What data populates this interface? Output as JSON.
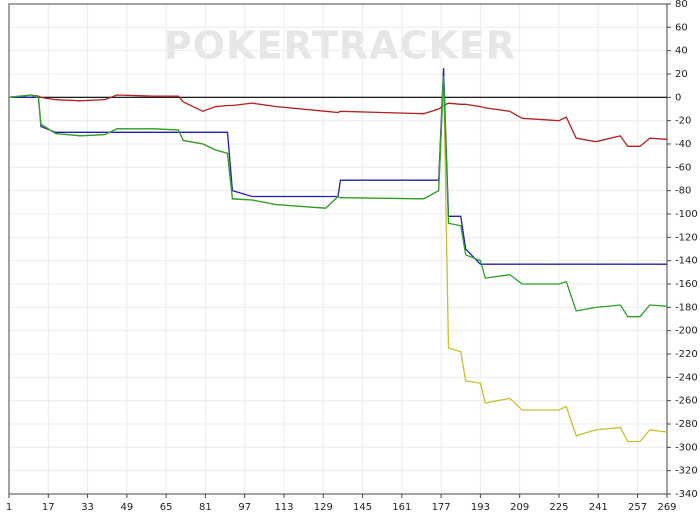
{
  "chart_data": {
    "type": "line",
    "watermark": "POKERTRACKER",
    "x": [
      1,
      10,
      13,
      14,
      20,
      30,
      40,
      45,
      60,
      70,
      72,
      80,
      85,
      90,
      92,
      100,
      110,
      130,
      135,
      136,
      170,
      176,
      178,
      180,
      185,
      187,
      193,
      195,
      205,
      210,
      225,
      228,
      232,
      240,
      250,
      253,
      258,
      262,
      269
    ],
    "series": [
      {
        "color": "#b22222",
        "values": [
          0,
          2,
          1,
          0,
          -2,
          -3,
          -2,
          2,
          1,
          1,
          -4,
          -12,
          -8,
          -7,
          -7,
          -5,
          -8,
          -12,
          -13,
          -12,
          -14,
          -10,
          -7,
          -5,
          -6,
          -6,
          -8,
          -9,
          -12,
          -18,
          -20,
          -17,
          -35,
          -38,
          -33,
          -42,
          -42,
          -35,
          -36
        ]
      },
      {
        "color": "#2020b0",
        "values": [
          0,
          0,
          0,
          -25,
          -30,
          -30,
          -30,
          -30,
          -30,
          -30,
          -30,
          -30,
          -30,
          -30,
          -80,
          -85,
          -85,
          -85,
          -85,
          -71,
          -71,
          -71,
          25,
          -102,
          -102,
          -130,
          -143,
          -143,
          -143,
          -143,
          -143,
          -143,
          -143,
          -143,
          -143,
          -143,
          -143,
          -143,
          -143
        ]
      },
      {
        "color": "#c8c030",
        "values": [
          0,
          2,
          0,
          -23,
          -31,
          -33,
          -32,
          -27,
          -27,
          -28,
          -37,
          -40,
          -45,
          -48,
          -87,
          -88,
          -92,
          -95,
          -85,
          -86,
          -87,
          -80,
          18,
          -215,
          -218,
          -243,
          -245,
          -262,
          -258,
          -268,
          -268,
          -265,
          -290,
          -285,
          -283,
          -295,
          -295,
          -285,
          -287
        ]
      },
      {
        "color": "#2ca02c",
        "values": [
          0,
          2,
          0,
          -23,
          -31,
          -33,
          -32,
          -27,
          -27,
          -28,
          -37,
          -40,
          -45,
          -48,
          -87,
          -88,
          -92,
          -95,
          -85,
          -86,
          -87,
          -80,
          18,
          -108,
          -110,
          -135,
          -140,
          -155,
          -152,
          -160,
          -160,
          -158,
          -183,
          -180,
          -178,
          -188,
          -188,
          -178,
          -179
        ]
      }
    ],
    "xlim": [
      1,
      269
    ],
    "xticks": [
      1,
      17,
      33,
      49,
      65,
      81,
      97,
      113,
      129,
      145,
      161,
      177,
      193,
      209,
      225,
      241,
      257,
      269
    ],
    "ylim": [
      -340,
      80
    ],
    "yticks": [
      80,
      60,
      40,
      20,
      0,
      -20,
      -40,
      -60,
      -80,
      -100,
      -120,
      -140,
      -160,
      -180,
      -200,
      -220,
      -240,
      -260,
      -280,
      -300,
      -320,
      -340
    ],
    "grid": true
  }
}
